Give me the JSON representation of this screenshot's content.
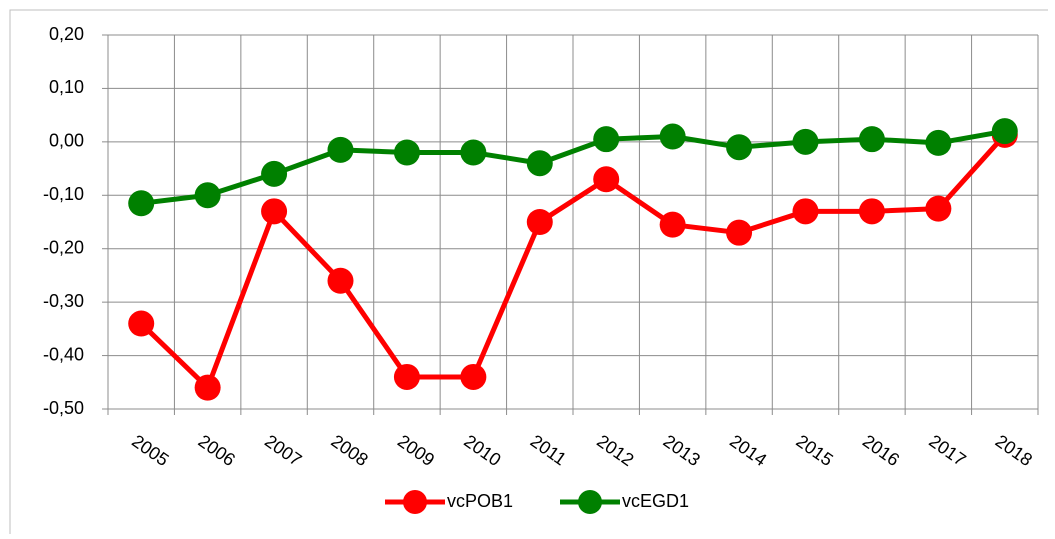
{
  "chart_data": {
    "type": "line",
    "categories": [
      "2005",
      "2006",
      "2007",
      "2008",
      "2009",
      "2010",
      "2011",
      "2012",
      "2013",
      "2014",
      "2015",
      "2016",
      "2017",
      "2018"
    ],
    "series": [
      {
        "name": "vcPOB1",
        "color": "#ff0000",
        "values": [
          -0.34,
          -0.46,
          -0.13,
          -0.26,
          -0.44,
          -0.44,
          -0.15,
          -0.07,
          -0.155,
          -0.17,
          -0.13,
          -0.13,
          -0.125,
          0.013
        ]
      },
      {
        "name": "vcEGD1",
        "color": "#008000",
        "values": [
          -0.115,
          -0.1,
          -0.06,
          -0.015,
          -0.02,
          -0.02,
          -0.04,
          0.005,
          0.01,
          -0.01,
          0.0,
          0.005,
          -0.002,
          0.02
        ]
      }
    ],
    "ylim": [
      -0.5,
      0.2
    ],
    "yticks": [
      {
        "value": -0.5,
        "label": "-0,50"
      },
      {
        "value": -0.4,
        "label": "-0,40"
      },
      {
        "value": -0.3,
        "label": "-0,30"
      },
      {
        "value": -0.2,
        "label": "-0,20"
      },
      {
        "value": -0.1,
        "label": "-0,10"
      },
      {
        "value": 0,
        "label": "0,00"
      },
      {
        "value": 0.1,
        "label": "0,10"
      },
      {
        "value": 0.2,
        "label": "0,20"
      }
    ],
    "grid": true,
    "legend": "bottom"
  }
}
